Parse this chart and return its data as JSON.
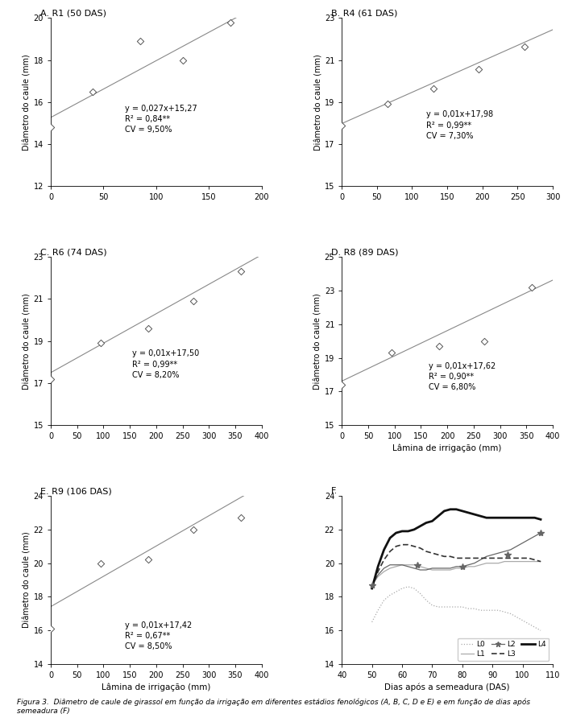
{
  "panels": [
    {
      "title": "A. R1 (50 DAS)",
      "x_data": [
        0,
        40,
        85,
        125,
        170
      ],
      "y_data": [
        14.8,
        16.5,
        18.9,
        18.0,
        19.8
      ],
      "slope": 0.027,
      "intercept": 15.27,
      "xlim": [
        0,
        200
      ],
      "ylim": [
        12,
        20
      ],
      "yticks": [
        12,
        14,
        16,
        18,
        20
      ],
      "xticks": [
        0,
        50,
        100,
        150,
        200
      ],
      "eq_x": 70,
      "eq_y": 14.5,
      "eq_text": "y = 0,027x+15,27\nR² = 0,84**\nCV = 9,50%"
    },
    {
      "title": "B. R4 (61 DAS)",
      "x_data": [
        0,
        65,
        130,
        195,
        260
      ],
      "y_data": [
        17.9,
        18.9,
        19.65,
        20.55,
        21.65
      ],
      "slope": 0.01487,
      "intercept": 17.98,
      "xlim": [
        0,
        300
      ],
      "ylim": [
        15,
        23
      ],
      "yticks": [
        15,
        17,
        19,
        21,
        23
      ],
      "xticks": [
        0,
        50,
        100,
        150,
        200,
        250,
        300
      ],
      "eq_x": 120,
      "eq_y": 17.2,
      "eq_text": "y = 0,01x+17,98\nR² = 0,99**\nCV = 7,30%"
    },
    {
      "title": "C. R6 (74 DAS)",
      "x_data": [
        0,
        95,
        185,
        270,
        360
      ],
      "y_data": [
        17.2,
        18.9,
        19.6,
        20.9,
        22.3
      ],
      "slope": 0.014,
      "intercept": 17.5,
      "xlim": [
        0,
        400
      ],
      "ylim": [
        15,
        23
      ],
      "yticks": [
        15,
        17,
        19,
        21,
        23
      ],
      "xticks": [
        0,
        50,
        100,
        150,
        200,
        250,
        300,
        350,
        400
      ],
      "eq_x": 155,
      "eq_y": 17.2,
      "eq_text": "y = 0,01x+17,50\nR² = 0,99**\nCV = 8,20%"
    },
    {
      "title": "D. R8 (89 DAS)",
      "x_data": [
        0,
        95,
        185,
        270,
        360
      ],
      "y_data": [
        17.4,
        19.3,
        19.7,
        20.0,
        23.2
      ],
      "slope": 0.015,
      "intercept": 17.62,
      "xlim": [
        0,
        400
      ],
      "ylim": [
        15,
        25
      ],
      "yticks": [
        15,
        17,
        19,
        21,
        23,
        25
      ],
      "xticks": [
        0,
        50,
        100,
        150,
        200,
        250,
        300,
        350,
        400
      ],
      "eq_x": 165,
      "eq_y": 17.0,
      "eq_text": "y = 0,01x+17,62\nR² = 0,90**\nCV = 6,80%"
    },
    {
      "title": "E. R9 (106 DAS)",
      "x_data": [
        0,
        95,
        185,
        270,
        360
      ],
      "y_data": [
        16.1,
        20.0,
        20.2,
        22.0,
        22.7
      ],
      "slope": 0.018,
      "intercept": 17.42,
      "xlim": [
        0,
        400
      ],
      "ylim": [
        14,
        24
      ],
      "yticks": [
        14,
        16,
        18,
        20,
        22,
        24
      ],
      "xticks": [
        0,
        50,
        100,
        150,
        200,
        250,
        300,
        350,
        400
      ],
      "eq_x": 140,
      "eq_y": 14.8,
      "eq_text": "y = 0,01x+17,42\nR² = 0,67**\nCV = 8,50%"
    }
  ],
  "panel_F": {
    "title": "F.",
    "xlim": [
      40,
      110
    ],
    "ylim": [
      14,
      24
    ],
    "xticks": [
      40,
      50,
      60,
      70,
      80,
      90,
      100,
      110
    ],
    "yticks": [
      14,
      16,
      18,
      20,
      22,
      24
    ],
    "xlabel": "Dias após a semeadura (DAS)",
    "L0_x": [
      50,
      52,
      54,
      56,
      58,
      60,
      62,
      64,
      66,
      68,
      70,
      72,
      74,
      76,
      78,
      80,
      82,
      84,
      86,
      88,
      90,
      92,
      94,
      96,
      98,
      100,
      102,
      104,
      106
    ],
    "L0_y": [
      16.5,
      17.2,
      17.8,
      18.1,
      18.3,
      18.5,
      18.6,
      18.5,
      18.2,
      17.8,
      17.5,
      17.4,
      17.4,
      17.4,
      17.4,
      17.4,
      17.3,
      17.3,
      17.2,
      17.2,
      17.2,
      17.2,
      17.1,
      17.0,
      16.8,
      16.6,
      16.4,
      16.2,
      16.0
    ],
    "L1_x": [
      50,
      52,
      54,
      56,
      58,
      60,
      62,
      64,
      66,
      68,
      70,
      72,
      74,
      76,
      78,
      80,
      82,
      84,
      86,
      88,
      90,
      92,
      94,
      96,
      98,
      100,
      102,
      104,
      106
    ],
    "L1_y": [
      18.7,
      19.2,
      19.5,
      19.7,
      19.8,
      19.9,
      19.9,
      19.9,
      19.8,
      19.7,
      19.6,
      19.6,
      19.6,
      19.6,
      19.7,
      19.7,
      19.8,
      19.8,
      19.9,
      20.0,
      20.0,
      20.0,
      20.1,
      20.1,
      20.1,
      20.1,
      20.1,
      20.1,
      20.1
    ],
    "L2_x": [
      50,
      52,
      54,
      56,
      58,
      60,
      62,
      64,
      66,
      68,
      70,
      72,
      74,
      76,
      78,
      80,
      82,
      84,
      86,
      88,
      90,
      92,
      94,
      96,
      98,
      100,
      102,
      104,
      106
    ],
    "L2_y": [
      18.7,
      19.3,
      19.7,
      19.9,
      19.9,
      19.9,
      19.8,
      19.7,
      19.6,
      19.6,
      19.7,
      19.7,
      19.7,
      19.7,
      19.8,
      19.8,
      19.9,
      20.0,
      20.2,
      20.4,
      20.5,
      20.6,
      20.7,
      20.8,
      21.0,
      21.2,
      21.4,
      21.6,
      21.8
    ],
    "L2_markers_x": [
      50,
      65,
      80,
      95,
      106
    ],
    "L2_markers_y": [
      18.7,
      19.9,
      19.8,
      20.5,
      21.8
    ],
    "L3_x": [
      50,
      52,
      54,
      56,
      58,
      60,
      62,
      64,
      66,
      68,
      70,
      72,
      74,
      76,
      78,
      80,
      82,
      84,
      86,
      88,
      90,
      92,
      94,
      96,
      98,
      100,
      102,
      104,
      106
    ],
    "L3_y": [
      18.5,
      19.5,
      20.2,
      20.7,
      21.0,
      21.1,
      21.1,
      21.0,
      20.9,
      20.7,
      20.6,
      20.5,
      20.4,
      20.4,
      20.3,
      20.3,
      20.3,
      20.3,
      20.3,
      20.3,
      20.3,
      20.3,
      20.3,
      20.3,
      20.3,
      20.3,
      20.3,
      20.2,
      20.1
    ],
    "L4_x": [
      50,
      52,
      54,
      56,
      58,
      60,
      62,
      64,
      66,
      68,
      70,
      72,
      74,
      76,
      78,
      80,
      82,
      84,
      86,
      88,
      90,
      92,
      94,
      96,
      98,
      100,
      102,
      104,
      106
    ],
    "L4_y": [
      18.5,
      19.8,
      20.8,
      21.5,
      21.8,
      21.9,
      21.9,
      22.0,
      22.2,
      22.4,
      22.5,
      22.8,
      23.1,
      23.2,
      23.2,
      23.1,
      23.0,
      22.9,
      22.8,
      22.7,
      22.7,
      22.7,
      22.7,
      22.7,
      22.7,
      22.7,
      22.7,
      22.7,
      22.6
    ]
  },
  "xlabel_scatter": "Lâmina de irrigação (mm)",
  "ylabel_scatter": "Diâmetro do caule (mm)",
  "figure_caption": "Figura 3.  Diâmetro de caule de girassol em função da irrigação em diferentes estádios fenológicos (A, B, C, D e E) e em função de dias após semeadura (F)"
}
